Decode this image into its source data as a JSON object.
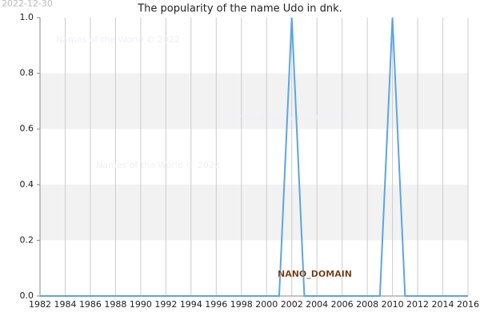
{
  "chart_data": {
    "type": "line",
    "title": "The popularity of the name Udo in dnk.",
    "date": "2022-12-30",
    "watermarks": [
      "Names of the World © 2022",
      "Names of the World © 2022",
      "Names of the World © 2022"
    ],
    "domain": "NANO_DOMAIN",
    "x": [
      1982,
      1983,
      1984,
      1985,
      1986,
      1987,
      1988,
      1989,
      1990,
      1991,
      1992,
      1993,
      1994,
      1995,
      1996,
      1997,
      1998,
      1999,
      2000,
      2001,
      2002,
      2003,
      2004,
      2005,
      2006,
      2007,
      2008,
      2009,
      2010,
      2011,
      2012,
      2013,
      2014,
      2015,
      2016
    ],
    "series": [
      {
        "color": "#5aa5e6",
        "values": [
          0,
          0,
          0,
          0,
          0,
          0,
          0,
          0,
          0,
          0,
          0,
          0,
          0,
          0,
          0,
          0,
          0,
          0,
          0,
          0,
          1,
          0,
          0,
          0,
          0,
          0,
          0,
          0,
          1,
          0,
          0,
          0,
          0,
          0,
          0
        ]
      }
    ],
    "xlim": [
      1982,
      2016
    ],
    "xticks": [
      1982,
      1984,
      1986,
      1988,
      1990,
      1992,
      1994,
      1996,
      1998,
      2000,
      2002,
      2004,
      2006,
      2008,
      2010,
      2012,
      2014,
      2016
    ],
    "ylim": [
      0,
      1
    ],
    "yticks": [
      {
        "value": 0,
        "label": "0.0"
      },
      0.2,
      0.4,
      0.6,
      0.8,
      {
        "value": 1,
        "label": "1.0"
      }
    ],
    "grid": true
  }
}
